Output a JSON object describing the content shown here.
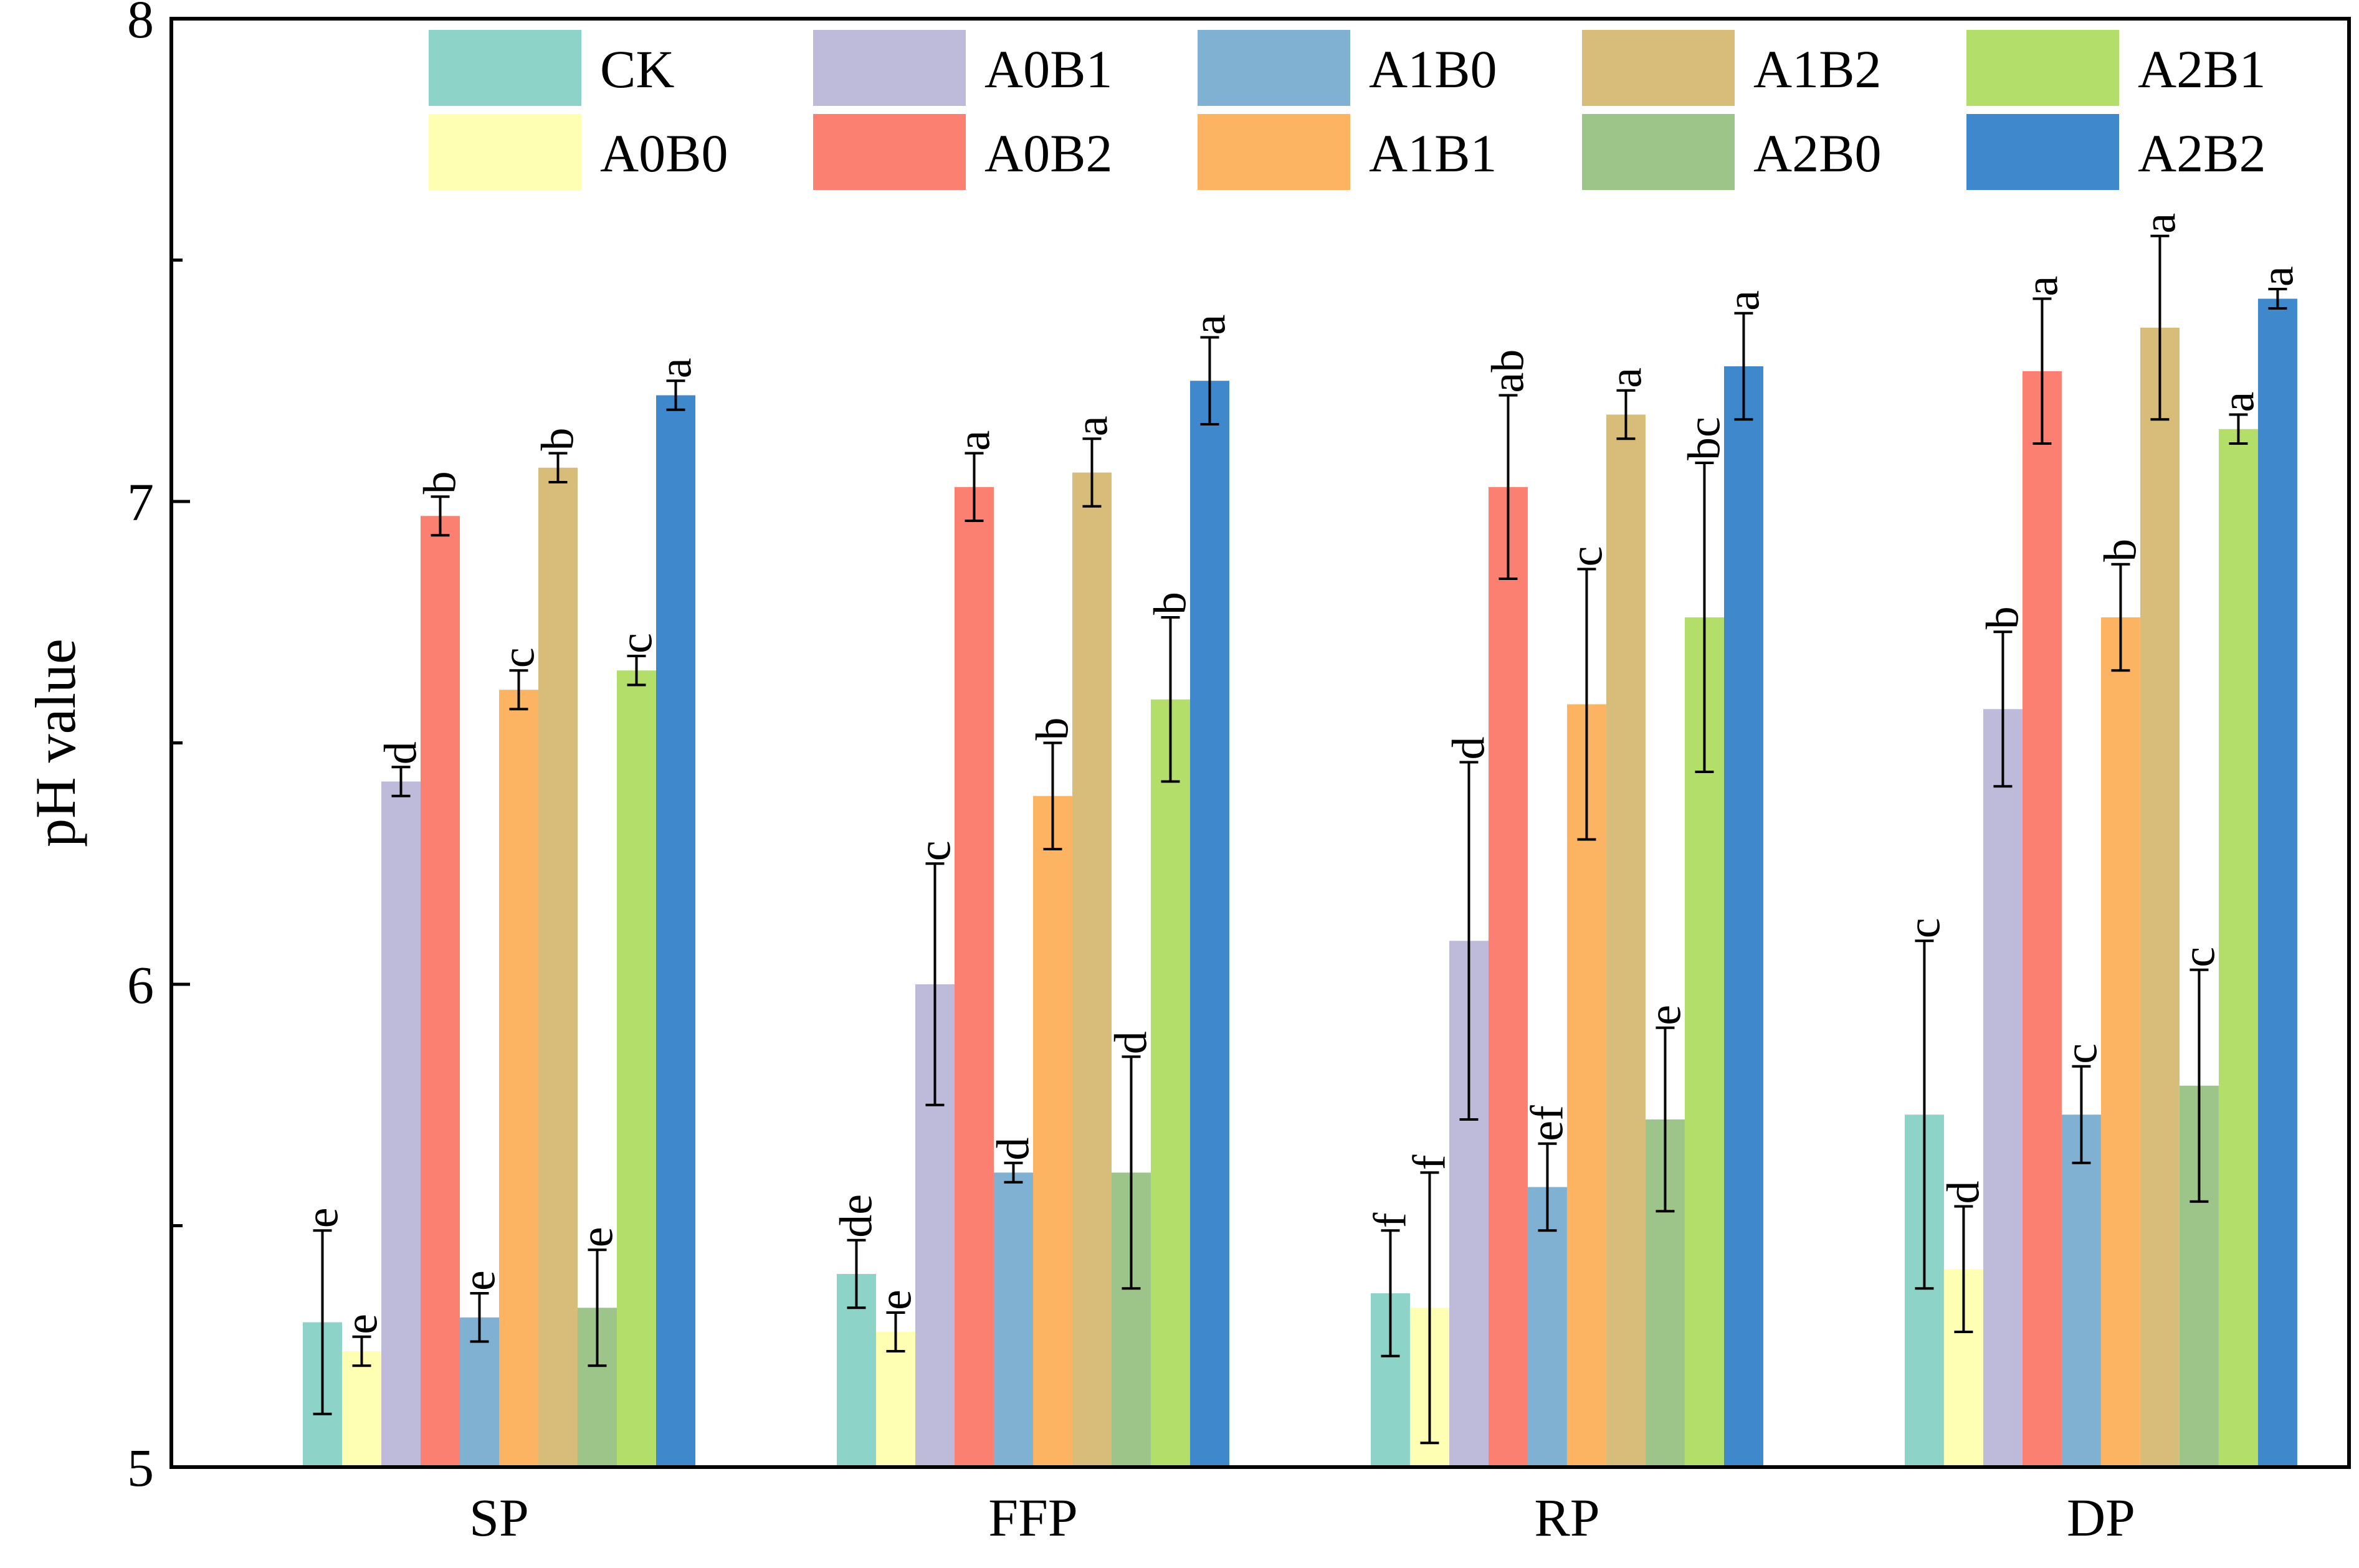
{
  "chart_data": {
    "type": "bar",
    "title": "",
    "xlabel": "",
    "ylabel": "pH value",
    "ylim": [
      5,
      8
    ],
    "yticks": [
      5,
      6,
      7,
      8
    ],
    "grid": false,
    "legend_position": "top",
    "categories": [
      "SP",
      "FFP",
      "RP",
      "DP"
    ],
    "series": [
      {
        "name": "CK",
        "color": "#8DD3C7",
        "values": [
          5.3,
          5.4,
          5.36,
          5.73
        ],
        "errors": [
          0.19,
          0.07,
          0.13,
          0.36
        ],
        "labels": [
          "e",
          "de",
          "f",
          "c"
        ]
      },
      {
        "name": "A0B0",
        "color": "#FFFFB3",
        "values": [
          5.24,
          5.28,
          5.33,
          5.41
        ],
        "errors": [
          0.03,
          0.04,
          0.28,
          0.13
        ],
        "labels": [
          "e",
          "e",
          "f",
          "d"
        ]
      },
      {
        "name": "A0B1",
        "color": "#BEBADA",
        "values": [
          6.42,
          6.0,
          6.09,
          6.57
        ],
        "errors": [
          0.03,
          0.25,
          0.37,
          0.16
        ],
        "labels": [
          "d",
          "c",
          "d",
          "b"
        ]
      },
      {
        "name": "A0B2",
        "color": "#FB8072",
        "values": [
          6.97,
          7.03,
          7.03,
          7.27
        ],
        "errors": [
          0.04,
          0.07,
          0.19,
          0.15
        ],
        "labels": [
          "b",
          "a",
          "ab",
          "a"
        ]
      },
      {
        "name": "A1B0",
        "color": "#80B1D3",
        "values": [
          5.31,
          5.61,
          5.58,
          5.73
        ],
        "errors": [
          0.05,
          0.02,
          0.09,
          0.1
        ],
        "labels": [
          "e",
          "d",
          "ef",
          "c"
        ]
      },
      {
        "name": "A1B1",
        "color": "#FDB462",
        "values": [
          6.61,
          6.39,
          6.58,
          6.76
        ],
        "errors": [
          0.04,
          0.11,
          0.28,
          0.11
        ],
        "labels": [
          "c",
          "b",
          "c",
          "b"
        ]
      },
      {
        "name": "A1B2",
        "color": "#D8BD7A",
        "values": [
          7.07,
          7.06,
          7.18,
          7.36
        ],
        "errors": [
          0.03,
          0.07,
          0.05,
          0.19
        ],
        "labels": [
          "b",
          "a",
          "a",
          "a"
        ]
      },
      {
        "name": "A2B0",
        "color": "#9DC58A",
        "values": [
          5.33,
          5.61,
          5.72,
          5.79
        ],
        "errors": [
          0.12,
          0.24,
          0.19,
          0.24
        ],
        "labels": [
          "e",
          "d",
          "e",
          "c"
        ]
      },
      {
        "name": "A2B1",
        "color": "#B3DE69",
        "values": [
          6.65,
          6.59,
          6.76,
          7.15
        ],
        "errors": [
          0.03,
          0.17,
          0.32,
          0.03
        ],
        "labels": [
          "c",
          "b",
          "bc",
          "a"
        ]
      },
      {
        "name": "A2B2",
        "color": "#3F88CC",
        "values": [
          7.22,
          7.25,
          7.28,
          7.42
        ],
        "errors": [
          0.03,
          0.09,
          0.11,
          0.02
        ],
        "labels": [
          "a",
          "a",
          "a",
          "a"
        ]
      }
    ]
  }
}
